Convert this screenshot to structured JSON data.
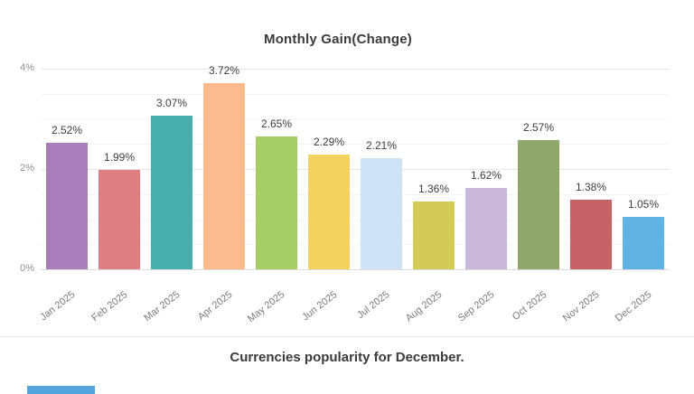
{
  "chart": {
    "title": "Monthly Gain(Change)"
  },
  "chart_data": {
    "type": "bar",
    "title": "Monthly Gain(Change)",
    "categories": [
      "Jan 2025",
      "Feb 2025",
      "Mar 2025",
      "Apr 2025",
      "May 2025",
      "Jun 2025",
      "Jul 2025",
      "Aug 2025",
      "Sep 2025",
      "Oct 2025",
      "Nov 2025",
      "Dec 2025"
    ],
    "values": [
      2.52,
      1.99,
      3.07,
      3.72,
      2.65,
      2.29,
      2.21,
      1.36,
      1.62,
      2.57,
      1.38,
      1.05
    ],
    "value_labels": [
      "2.52%",
      "1.99%",
      "3.07%",
      "3.72%",
      "2.65%",
      "2.29%",
      "2.21%",
      "1.36%",
      "1.62%",
      "2.57%",
      "1.38%",
      "1.05%"
    ],
    "bar_colors": [
      "#a87db8",
      "#dd7e81",
      "#48aeac",
      "#fbbb8d",
      "#a5ce66",
      "#f3d260",
      "#cfe3f6",
      "#d2ca55",
      "#c9b8da",
      "#8ea76a",
      "#c46266",
      "#5fb4e5"
    ],
    "xlabel": "",
    "ylabel": "",
    "ylim": [
      0,
      4
    ],
    "y_ticks": [
      {
        "label": "0%",
        "value": 0
      },
      {
        "label": "2%",
        "value": 2
      },
      {
        "label": "4%",
        "value": 4
      }
    ],
    "grid": true,
    "legend": false,
    "x_label_rotation_deg": -38
  },
  "footer": {
    "title": "Currencies popularity for December."
  },
  "next_chart": {
    "partial_bar_color": "#4fa5dc"
  }
}
